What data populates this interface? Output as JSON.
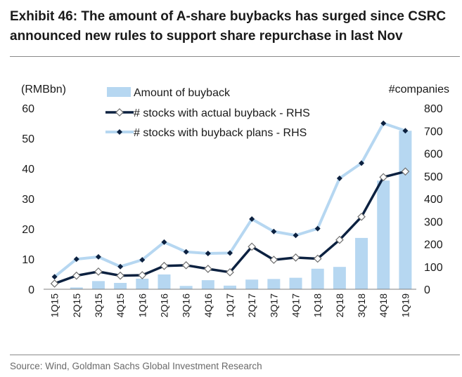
{
  "title_line1": "Exhibit 46: The amount of A-share buybacks has surged since CSRC",
  "title_line2": "announced new rules to support share repurchase in last Nov",
  "source": "Source: Wind, Goldman Sachs Global Investment Research",
  "colors": {
    "bar": "#b6d7f1",
    "actual_line": "#0c2140",
    "plan_line": "#b6d7f1",
    "plan_marker": "#0c2140",
    "actual_marker_fill": "#ffffff"
  },
  "chart_data": {
    "type": "bar",
    "categories": [
      "1Q15",
      "2Q15",
      "3Q15",
      "4Q15",
      "1Q16",
      "2Q16",
      "3Q16",
      "4Q16",
      "1Q17",
      "2Q17",
      "3Q17",
      "4Q17",
      "1Q18",
      "2Q18",
      "3Q18",
      "4Q18",
      "1Q19"
    ],
    "left_axis_unit": "(RMBbn)",
    "right_axis_unit": "#companies",
    "ylim_left": [
      0,
      60
    ],
    "yticks_left": [
      0,
      10,
      20,
      30,
      40,
      50,
      60
    ],
    "ylim_right": [
      0,
      800
    ],
    "yticks_right": [
      0,
      100,
      200,
      300,
      400,
      500,
      600,
      700,
      800
    ],
    "grid": false,
    "legend_position": "top-left",
    "series": [
      {
        "name": "Amount of buyback",
        "type": "bar",
        "axis": "left",
        "values": [
          0.1,
          0.6,
          2.7,
          2.1,
          3.5,
          4.9,
          1.1,
          3.0,
          1.2,
          3.2,
          3.4,
          3.8,
          6.8,
          7.4,
          17.0,
          36.0,
          52.5
        ]
      },
      {
        "name": "# stocks with actual buyback - RHS",
        "type": "line",
        "axis": "right",
        "values": [
          25,
          60,
          78,
          60,
          62,
          103,
          106,
          90,
          75,
          188,
          130,
          140,
          135,
          218,
          320,
          495,
          520
        ]
      },
      {
        "name": "# stocks with buyback plans - RHS",
        "type": "line",
        "axis": "right",
        "values": [
          55,
          133,
          143,
          100,
          130,
          208,
          165,
          158,
          160,
          310,
          255,
          238,
          268,
          490,
          557,
          733,
          700
        ]
      }
    ]
  }
}
